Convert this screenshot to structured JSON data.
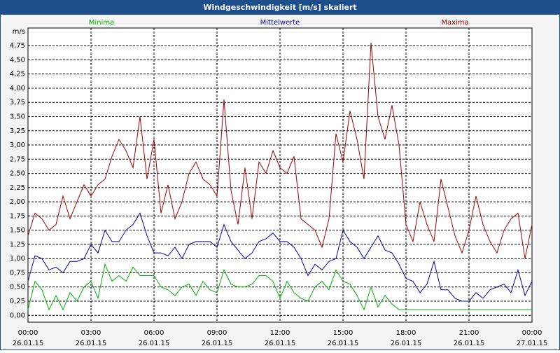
{
  "chart_data": {
    "type": "line",
    "title": "Windgeschwindigkeit [m/s] skaliert",
    "y_unit": "m/s",
    "x": [
      0,
      0.333,
      0.667,
      1,
      1.333,
      1.667,
      2,
      2.333,
      2.667,
      3,
      3.333,
      3.667,
      4,
      4.333,
      4.667,
      5,
      5.333,
      5.667,
      6,
      6.333,
      6.667,
      7,
      7.333,
      7.667,
      8,
      8.333,
      8.667,
      9,
      9.333,
      9.667,
      10,
      10.333,
      10.667,
      11,
      11.333,
      11.667,
      12,
      12.333,
      12.667,
      13,
      13.333,
      13.667,
      14,
      14.333,
      14.667,
      15,
      15.333,
      15.667,
      16,
      16.333,
      16.667,
      17,
      17.333,
      17.667,
      18,
      18.333,
      18.667,
      19,
      19.333,
      19.667,
      20,
      20.333,
      20.667,
      21,
      21.333,
      21.667,
      22,
      22.333,
      22.667,
      23,
      23.333,
      23.667,
      24
    ],
    "series": [
      {
        "name": "Minima",
        "color": "#00b000",
        "values": [
          0.1,
          0.6,
          0.45,
          0.1,
          0.35,
          0.1,
          0.4,
          0.25,
          0.5,
          0.6,
          0.3,
          0.9,
          0.6,
          0.7,
          0.6,
          0.85,
          0.7,
          0.7,
          0.7,
          0.5,
          0.45,
          0.35,
          0.5,
          0.55,
          0.35,
          0.6,
          0.45,
          0.4,
          0.8,
          0.55,
          0.5,
          0.5,
          0.55,
          0.7,
          0.7,
          0.6,
          0.3,
          0.6,
          0.4,
          0.3,
          0.25,
          0.5,
          0.6,
          0.45,
          0.8,
          0.6,
          0.55,
          0.35,
          0.1,
          0.5,
          0.15,
          0.35,
          0.2,
          0.1,
          0.1,
          0.1,
          0.1,
          0.1,
          0.1,
          0.1,
          0.1,
          0.1,
          0.1,
          0.1,
          0.1,
          0.1,
          0.1,
          0.1,
          0.1,
          0.1,
          0.1,
          0.1,
          0.1
        ]
      },
      {
        "name": "Mittelwerte",
        "color": "#0000a0",
        "values": [
          0.6,
          1.05,
          1.0,
          0.8,
          0.85,
          0.75,
          0.95,
          0.95,
          1.0,
          1.25,
          1.1,
          1.5,
          1.3,
          1.3,
          1.5,
          1.6,
          1.8,
          1.4,
          1.1,
          1.1,
          1.05,
          1.2,
          1.0,
          1.25,
          1.3,
          1.3,
          1.3,
          1.2,
          1.6,
          1.3,
          1.15,
          1.0,
          1.1,
          1.3,
          1.35,
          1.45,
          1.3,
          1.3,
          1.2,
          1.0,
          0.7,
          0.9,
          0.8,
          0.95,
          1.0,
          1.5,
          1.3,
          1.2,
          1.0,
          1.2,
          1.4,
          1.15,
          1.1,
          0.9,
          0.65,
          0.6,
          0.4,
          0.55,
          0.95,
          0.45,
          0.45,
          0.3,
          0.25,
          0.25,
          0.4,
          0.3,
          0.45,
          0.5,
          0.55,
          0.4,
          0.8,
          0.35,
          0.6
        ]
      },
      {
        "name": "Maxima",
        "color": "#a00000",
        "values": [
          1.4,
          1.8,
          1.7,
          1.5,
          1.6,
          2.1,
          1.7,
          2.0,
          2.3,
          2.1,
          2.3,
          2.4,
          2.8,
          3.1,
          2.9,
          2.6,
          3.5,
          2.4,
          3.1,
          1.8,
          2.3,
          1.7,
          2.0,
          2.5,
          2.7,
          2.4,
          2.3,
          2.1,
          3.8,
          2.2,
          1.6,
          2.6,
          1.7,
          2.7,
          2.5,
          2.9,
          2.6,
          2.5,
          2.8,
          1.7,
          1.6,
          1.5,
          1.2,
          1.7,
          3.2,
          2.7,
          3.6,
          3.1,
          2.4,
          4.8,
          3.5,
          3.1,
          3.7,
          3.0,
          1.6,
          1.3,
          2.0,
          1.6,
          1.3,
          2.4,
          1.9,
          1.4,
          1.1,
          1.5,
          2.1,
          1.6,
          1.3,
          1.1,
          1.5,
          1.7,
          1.8,
          1.0,
          1.6
        ]
      }
    ],
    "xlim": [
      0,
      24
    ],
    "xticks": [
      {
        "value": 0,
        "label": "00:00"
      },
      {
        "value": 3,
        "label": "03:00"
      },
      {
        "value": 6,
        "label": "06:00"
      },
      {
        "value": 9,
        "label": "09:00"
      },
      {
        "value": 12,
        "label": "12:00"
      },
      {
        "value": 15,
        "label": "15:00"
      },
      {
        "value": 18,
        "label": "18:00"
      },
      {
        "value": 21,
        "label": "21:00"
      },
      {
        "value": 24,
        "label": "00:00"
      }
    ],
    "xtick_dates": [
      "26.01.15",
      "26.01.15",
      "26.01.15",
      "26.01.15",
      "26.01.15",
      "26.01.15",
      "26.01.15",
      "26.01.15",
      "27.01.15"
    ],
    "ylim": [
      -0.12,
      5.06
    ],
    "yticks": [
      {
        "value": 0,
        "label": "0,00"
      },
      {
        "value": 0.25,
        "label": "0,25"
      },
      {
        "value": 0.5,
        "label": "0,50"
      },
      {
        "value": 0.75,
        "label": "0,75"
      },
      {
        "value": 1,
        "label": "1,00"
      },
      {
        "value": 1.25,
        "label": "1,25"
      },
      {
        "value": 1.5,
        "label": "1,50"
      },
      {
        "value": 1.75,
        "label": "1,75"
      },
      {
        "value": 2,
        "label": "2,00"
      },
      {
        "value": 2.25,
        "label": "2,25"
      },
      {
        "value": 2.5,
        "label": "2,50"
      },
      {
        "value": 2.75,
        "label": "2,75"
      },
      {
        "value": 3,
        "label": "3,00"
      },
      {
        "value": 3.25,
        "label": "3,25"
      },
      {
        "value": 3.5,
        "label": "3,50"
      },
      {
        "value": 3.75,
        "label": "3,75"
      },
      {
        "value": 4,
        "label": "4,00"
      },
      {
        "value": 4.25,
        "label": "4,25"
      },
      {
        "value": 4.5,
        "label": "4,50"
      },
      {
        "value": 4.75,
        "label": "4,75"
      }
    ],
    "grid": true
  }
}
